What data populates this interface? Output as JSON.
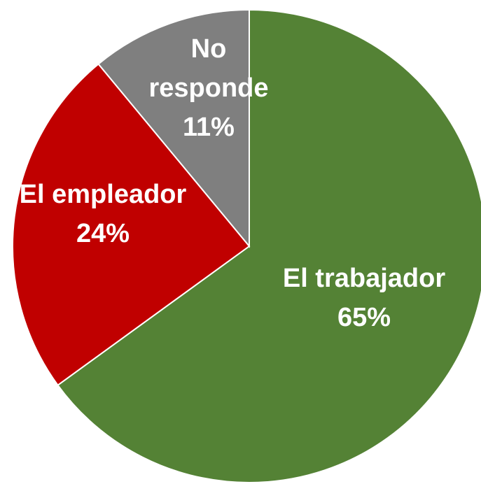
{
  "chart_data": {
    "type": "pie",
    "categories": [
      "El trabajador",
      "El empleador",
      "No responde"
    ],
    "values": [
      65,
      24,
      11
    ],
    "value_labels": [
      "65%",
      "24%",
      "11%"
    ],
    "colors": [
      "#548235",
      "#c00000",
      "#7f7f7f"
    ]
  }
}
